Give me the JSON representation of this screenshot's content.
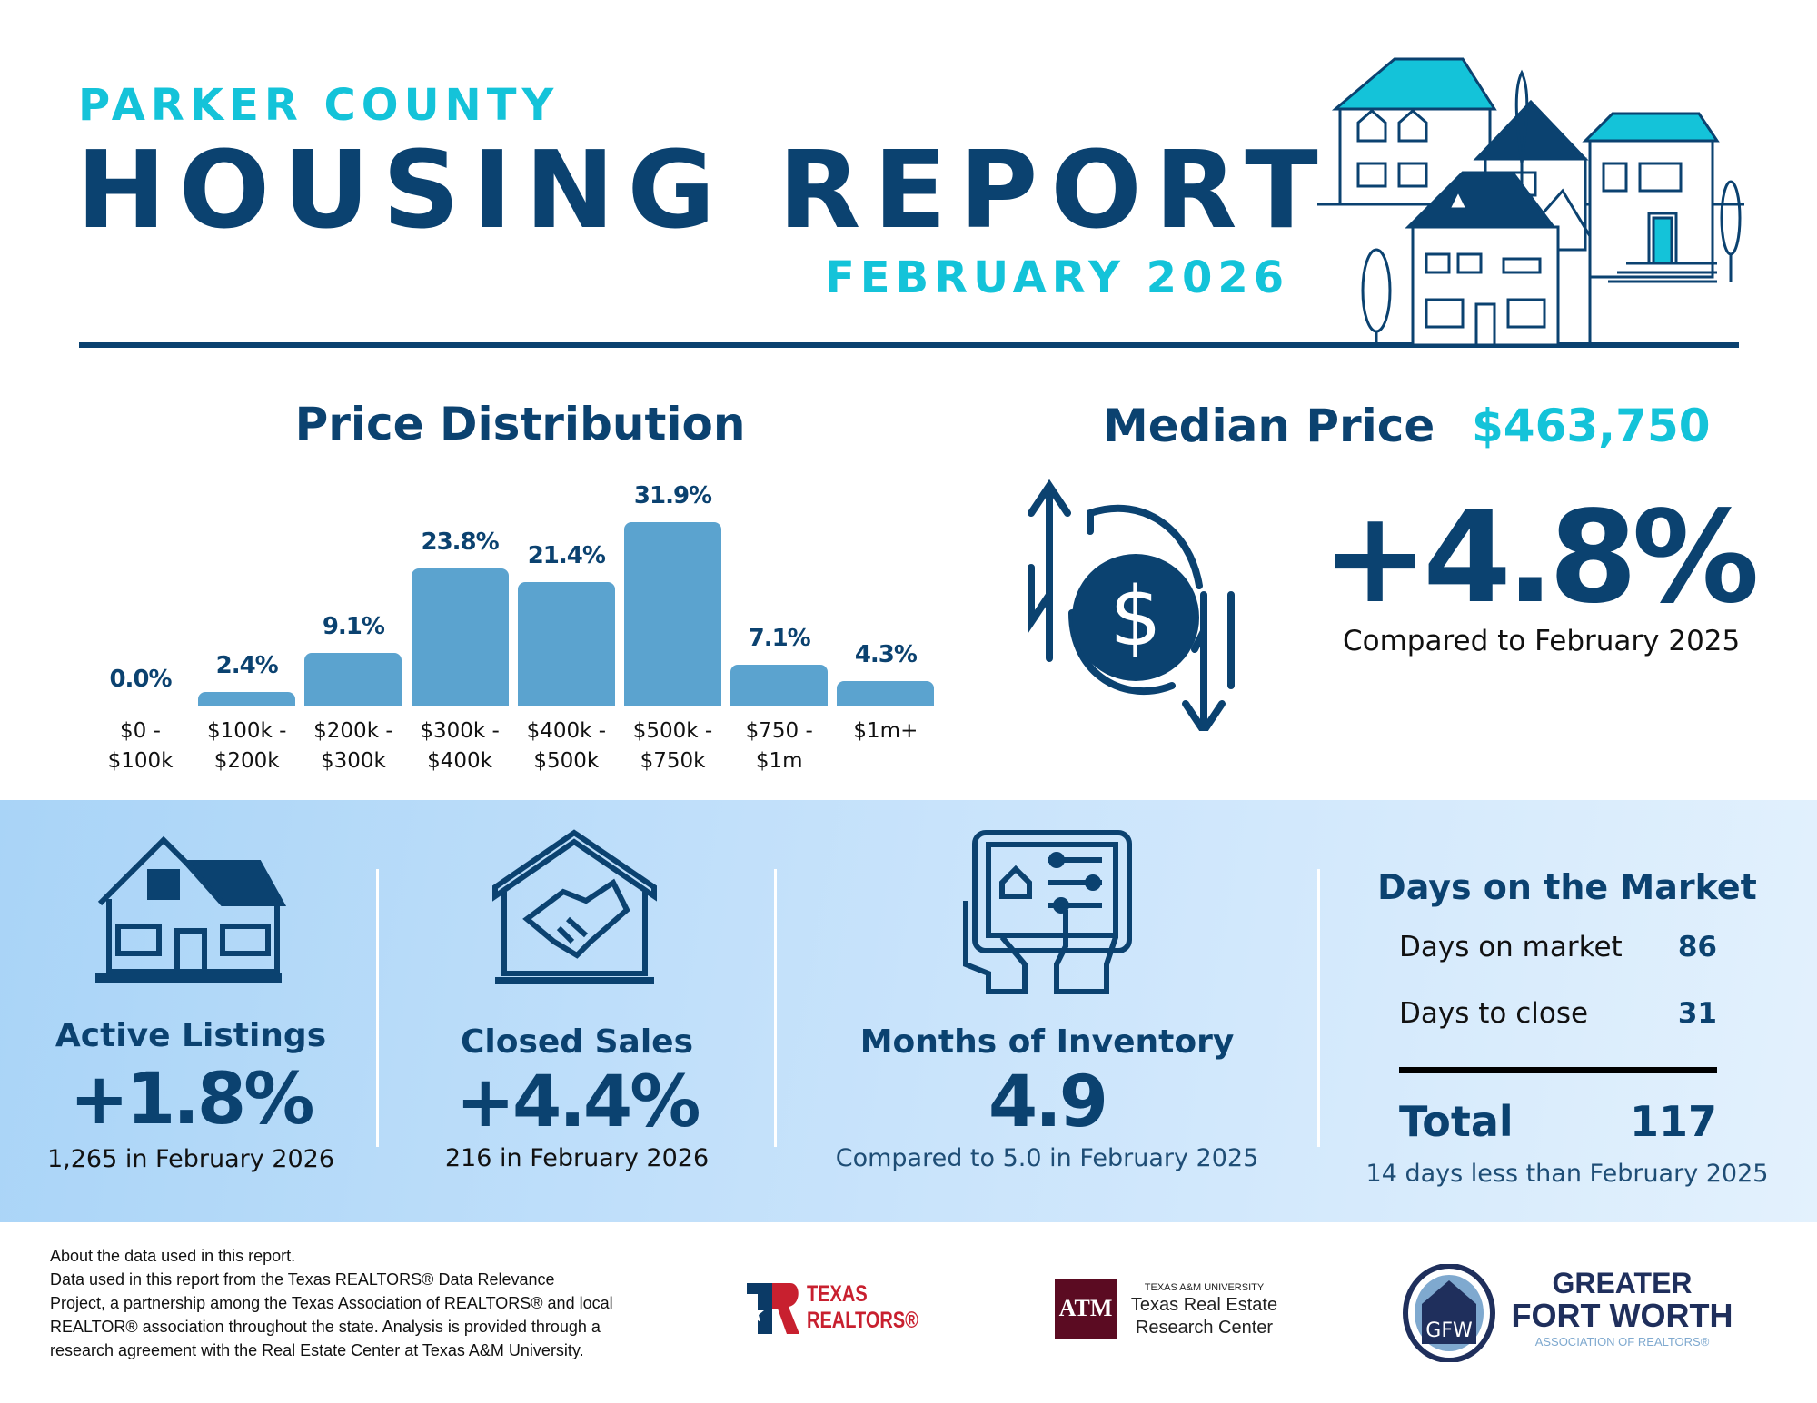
{
  "header": {
    "county": "PARKER COUNTY",
    "title": "HOUSING REPORT",
    "month": "FEBRUARY 2026"
  },
  "price_distribution": {
    "title": "Price Distribution"
  },
  "chart_data": {
    "type": "bar",
    "title": "Price Distribution",
    "categories": [
      "$0 -\n$100k",
      "$100k -\n$200k",
      "$200k -\n$300k",
      "$300k -\n$400k",
      "$400k -\n$500k",
      "$500k -\n$750k",
      "$750 -\n$1m",
      "$1m+"
    ],
    "values": [
      0.0,
      2.4,
      9.1,
      23.8,
      21.4,
      31.9,
      7.1,
      4.3
    ],
    "value_labels": [
      "0.0%",
      "2.4%",
      "9.1%",
      "23.8%",
      "21.4%",
      "31.9%",
      "7.1%",
      "4.3%"
    ],
    "xlabel": "",
    "ylabel": "",
    "ylim": [
      0,
      35
    ],
    "grid": false,
    "bar_color": "#5ba3cf"
  },
  "median_price": {
    "label": "Median Price",
    "value": "$463,750",
    "change": "+4.8%",
    "compare": "Compared to February 2025"
  },
  "stats": {
    "active": {
      "title": "Active Listings",
      "value": "+1.8%",
      "sub": "1,265 in February 2026"
    },
    "closed": {
      "title": "Closed Sales",
      "value": "+4.4%",
      "sub": "216 in February 2026"
    },
    "inventory": {
      "title": "Months of Inventory",
      "value": "4.9",
      "sub": "Compared to 5.0 in February 2025"
    },
    "dom": {
      "title": "Days on the Market",
      "rows": [
        {
          "label": "Days on market",
          "value": "86"
        },
        {
          "label": "Days to close",
          "value": "31"
        }
      ],
      "total_label": "Total",
      "total_value": "117",
      "sub": "14 days less than February 2025"
    }
  },
  "footer": {
    "lines": [
      "About the data used in this report.",
      "Data used in this report from the Texas REALTORS® Data Relevance",
      "Project, a partnership among the Texas Association of REALTORS® and local",
      "REALTOR® association throughout the state. Analysis is provided through a",
      "research agreement with the Real Estate Center at Texas A&M University."
    ],
    "logos": {
      "texas_realtors": [
        "TEXAS",
        "REALTORS®"
      ],
      "tamu": {
        "small": "TEXAS A&M UNIVERSITY",
        "line1": "Texas Real Estate",
        "line2": "Research Center"
      },
      "gfw": {
        "line1": "GREATER",
        "line2": "FORT WORTH",
        "line3": "ASSOCIATION OF REALTORS®"
      }
    }
  },
  "colors": {
    "navy": "#0b4270",
    "cyan": "#14c3d9",
    "bar": "#5ba3cf"
  }
}
